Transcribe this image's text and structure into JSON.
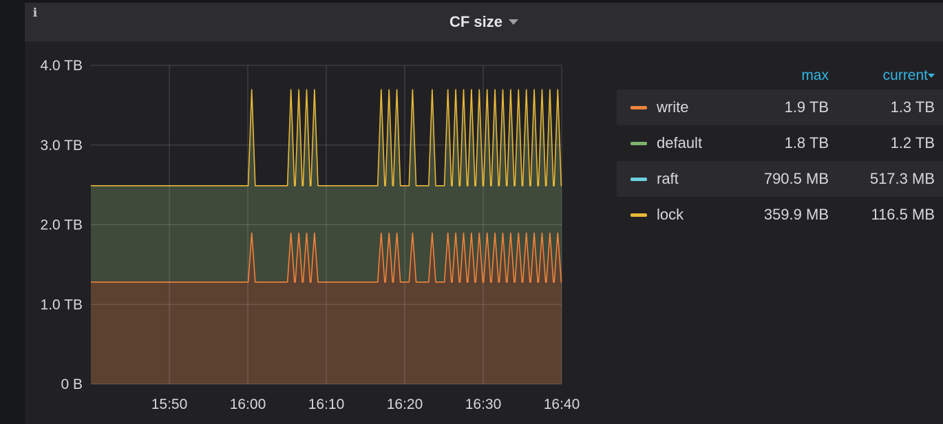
{
  "panel": {
    "title": "CF size",
    "info_icon": "i"
  },
  "legend": {
    "columns": {
      "max": "max",
      "current": "current"
    },
    "items": [
      {
        "name": "write",
        "max": "1.9 TB",
        "current": "1.3 TB",
        "color": "#ef843c"
      },
      {
        "name": "default",
        "max": "1.8 TB",
        "current": "1.2 TB",
        "color": "#7eb26d"
      },
      {
        "name": "raft",
        "max": "790.5 MB",
        "current": "517.3 MB",
        "color": "#6ed0e0"
      },
      {
        "name": "lock",
        "max": "359.9 MB",
        "current": "116.5 MB",
        "color": "#eab839"
      }
    ]
  },
  "chart_data": {
    "type": "area",
    "stacked": true,
    "x_ticks": [
      "15:50",
      "16:00",
      "16:10",
      "16:20",
      "16:30",
      "16:40"
    ],
    "y_ticks": [
      "0 B",
      "1.0 TB",
      "2.0 TB",
      "3.0 TB",
      "4.0 TB"
    ],
    "y_unit": "TB",
    "ylim": [
      0,
      4
    ],
    "x_range_minutes": [
      "15:40",
      "16:40"
    ],
    "grid": true,
    "series": [
      {
        "name": "write",
        "color": "#ef843c",
        "fill": "#5c4131",
        "baseline": 1.28,
        "peak": 1.9,
        "spike_times": [
          "16:00:30",
          "16:05:30",
          "16:06:30",
          "16:07:30",
          "16:08:30",
          "16:17:00",
          "16:18:00",
          "16:19:00",
          "16:21:00",
          "16:23:30",
          "16:25:30",
          "16:26:30",
          "16:27:30",
          "16:28:30",
          "16:29:30",
          "16:30:30",
          "16:31:30",
          "16:32:30",
          "16:33:30",
          "16:34:30",
          "16:35:30",
          "16:36:30",
          "16:37:30",
          "16:38:30",
          "16:39:30"
        ]
      },
      {
        "name": "default",
        "color": "#7eb26d",
        "fill": "#3f4a3a",
        "stacked_baseline": 2.49,
        "stacked_peak": 3.7,
        "spike_times": [
          "16:00:30",
          "16:05:30",
          "16:06:30",
          "16:07:30",
          "16:08:30",
          "16:17:00",
          "16:18:00",
          "16:19:00",
          "16:21:00",
          "16:23:30",
          "16:25:30",
          "16:26:30",
          "16:27:30",
          "16:28:30",
          "16:29:30",
          "16:30:30",
          "16:31:30",
          "16:32:30",
          "16:33:30",
          "16:34:30",
          "16:35:30",
          "16:36:30",
          "16:37:30",
          "16:38:30",
          "16:39:30"
        ]
      },
      {
        "name": "raft",
        "color": "#6ed0e0"
      },
      {
        "name": "lock",
        "color": "#eab839",
        "top_line": true
      }
    ]
  }
}
